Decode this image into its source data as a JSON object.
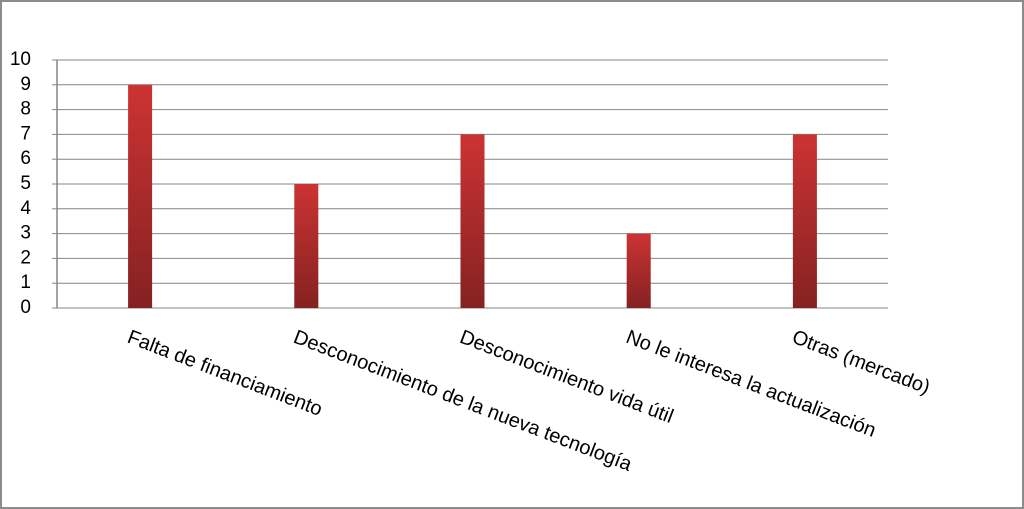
{
  "chart_data": {
    "type": "bar",
    "categories": [
      "Falta de financiamiento",
      "Desconocimiento de la nueva tecnología",
      "Desconocimiento vida útil",
      "No le interesa la actualización",
      "Otras (mercado)"
    ],
    "values": [
      9,
      5,
      7,
      3,
      7
    ],
    "color": "#cc3333",
    "ylim": [
      0,
      10
    ],
    "yticks": [
      0,
      1,
      2,
      3,
      4,
      5,
      6,
      7,
      8,
      9,
      10
    ],
    "grid": true
  }
}
